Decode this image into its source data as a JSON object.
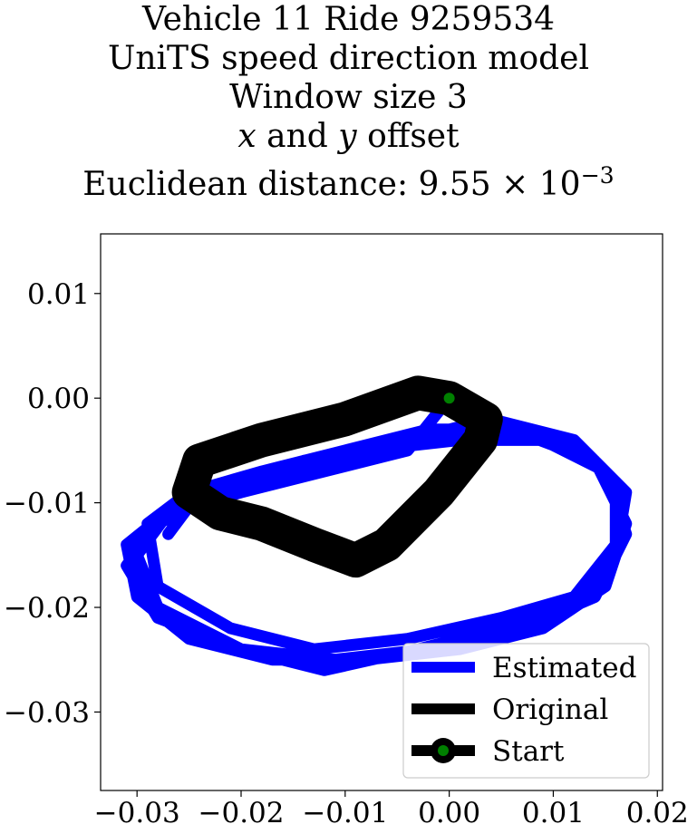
{
  "chart_data": {
    "type": "line",
    "title_lines": [
      "Vehicle 11 Ride 9259534",
      "UniTS speed direction model",
      "Window size 3",
      "x and y offset",
      "Euclidean distance: 9.55 × 10−3"
    ],
    "title_parts": {
      "l4_x": "x",
      "l4_and": " and ",
      "l4_y": "y",
      "l4_rest": " offset",
      "l5_prefix": "Euclidean distance: 9.55 × 10",
      "l5_exp": "−3"
    },
    "xlabel": "",
    "ylabel": "",
    "xlim": [
      -0.0335,
      0.0205
    ],
    "ylim": [
      -0.0375,
      0.0157
    ],
    "xticks": [
      -0.03,
      -0.02,
      -0.01,
      0.0,
      0.01,
      0.02
    ],
    "xtick_labels": [
      "−0.03",
      "−0.02",
      "−0.01",
      "0.00",
      "0.01",
      "0.02"
    ],
    "yticks": [
      0.01,
      0.0,
      -0.01,
      -0.02,
      -0.03
    ],
    "ytick_labels": [
      "0.01",
      "0.00",
      "−0.01",
      "−0.02",
      "−0.03"
    ],
    "grid": false,
    "legend_position": "lower-right",
    "series": [
      {
        "name": "Estimated",
        "color": "#0000ff",
        "x": [
          0.0,
          -0.004,
          -0.012,
          -0.02,
          -0.027,
          -0.03,
          -0.028,
          -0.02,
          -0.012,
          -0.003,
          0.005,
          0.012,
          0.016,
          0.017,
          0.012,
          0.004,
          -0.004,
          -0.012,
          -0.02,
          -0.026,
          -0.031,
          -0.03,
          -0.025,
          -0.017,
          -0.008,
          0.001,
          0.009,
          0.015,
          0.017,
          0.014,
          0.006,
          -0.002,
          -0.01,
          -0.018,
          -0.025,
          -0.029,
          -0.028,
          -0.021,
          -0.013,
          -0.004,
          0.005,
          0.012,
          0.016,
          0.016,
          0.011,
          0.003,
          -0.005,
          -0.014,
          -0.022,
          -0.028,
          -0.031,
          -0.028,
          -0.02,
          -0.011,
          -0.002,
          0.007,
          0.014,
          0.017,
          0.015,
          0.009,
          0.001,
          -0.008,
          -0.017,
          -0.024,
          -0.027
        ],
        "y": [
          0.0,
          -0.005,
          -0.007,
          -0.009,
          -0.011,
          -0.015,
          -0.02,
          -0.024,
          -0.026,
          -0.024,
          -0.022,
          -0.02,
          -0.015,
          -0.009,
          -0.004,
          -0.002,
          -0.004,
          -0.006,
          -0.008,
          -0.01,
          -0.014,
          -0.019,
          -0.023,
          -0.025,
          -0.025,
          -0.024,
          -0.022,
          -0.018,
          -0.012,
          -0.006,
          -0.003,
          -0.003,
          -0.005,
          -0.007,
          -0.009,
          -0.012,
          -0.018,
          -0.022,
          -0.024,
          -0.023,
          -0.021,
          -0.019,
          -0.014,
          -0.008,
          -0.004,
          -0.003,
          -0.004,
          -0.006,
          -0.009,
          -0.012,
          -0.016,
          -0.021,
          -0.024,
          -0.025,
          -0.024,
          -0.022,
          -0.019,
          -0.013,
          -0.007,
          -0.004,
          -0.004,
          -0.005,
          -0.007,
          -0.009,
          -0.013
        ]
      },
      {
        "name": "Original",
        "color": "#000000",
        "x": [
          0.0,
          0.0035,
          0.003,
          -0.001,
          -0.006,
          -0.009,
          -0.013,
          -0.018,
          -0.022,
          -0.025,
          -0.024,
          -0.018,
          -0.01,
          -0.003,
          0.0
        ],
        "y": [
          0.0,
          -0.002,
          -0.004,
          -0.009,
          -0.014,
          -0.0155,
          -0.014,
          -0.012,
          -0.011,
          -0.009,
          -0.006,
          -0.004,
          -0.002,
          0.0005,
          0.0
        ]
      }
    ],
    "start_marker": {
      "name": "Start",
      "x": 0.0,
      "y": 0.0,
      "color": "#008000",
      "edge_color": "#000000"
    },
    "legend": [
      "Estimated",
      "Original",
      "Start"
    ]
  }
}
